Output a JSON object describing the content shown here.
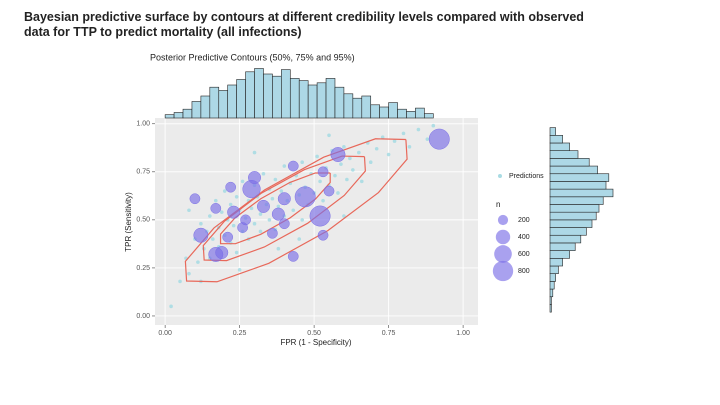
{
  "header": {
    "title": "Bayesian predictive surface by contours at different credibility levels compared with observed data for TTP to predict mortality (all infections)"
  },
  "chart_data": {
    "type": "scatter",
    "title": "Posterior Predictive Contours (50%, 75% and 95%)",
    "x_label": "FPR (1 - Specificity)",
    "y_label": "TPR (Sensitivity)",
    "xlim": [
      -0.034,
      1.05
    ],
    "ylim": [
      -0.047,
      1.03
    ],
    "xticks": [
      {
        "value": 0,
        "label": "0.00"
      },
      {
        "value": 0.25,
        "label": "0.25"
      },
      {
        "value": 0.5,
        "label": "0.50"
      },
      {
        "value": 0.75,
        "label": "0.75"
      },
      {
        "value": 1,
        "label": "1.00"
      }
    ],
    "yticks": [
      {
        "value": 0,
        "label": "0.00"
      },
      {
        "value": 0.25,
        "label": "0.25"
      },
      {
        "value": 0.5,
        "label": "0.50"
      },
      {
        "value": 0.75,
        "label": "0.75"
      },
      {
        "value": 1,
        "label": "1.00"
      }
    ],
    "grid": true,
    "series": [
      {
        "name": "Predictions",
        "color": "#a9dbe3",
        "x": [
          0.02,
          0.05,
          0.07,
          0.08,
          0.1,
          0.11,
          0.12,
          0.13,
          0.14,
          0.15,
          0.15,
          0.16,
          0.17,
          0.18,
          0.18,
          0.19,
          0.2,
          0.2,
          0.21,
          0.22,
          0.22,
          0.23,
          0.24,
          0.24,
          0.25,
          0.26,
          0.26,
          0.27,
          0.28,
          0.28,
          0.29,
          0.3,
          0.3,
          0.31,
          0.32,
          0.32,
          0.33,
          0.34,
          0.35,
          0.35,
          0.36,
          0.37,
          0.37,
          0.38,
          0.39,
          0.4,
          0.4,
          0.41,
          0.42,
          0.43,
          0.44,
          0.45,
          0.46,
          0.46,
          0.47,
          0.48,
          0.49,
          0.5,
          0.51,
          0.52,
          0.53,
          0.54,
          0.55,
          0.56,
          0.57,
          0.58,
          0.59,
          0.6,
          0.61,
          0.62,
          0.63,
          0.65,
          0.66,
          0.68,
          0.69,
          0.71,
          0.73,
          0.75,
          0.77,
          0.8,
          0.82,
          0.85,
          0.88,
          0.9,
          0.6,
          0.45,
          0.38,
          0.25,
          0.12,
          0.08,
          0.3,
          0.55
        ],
        "values": [
          0.05,
          0.18,
          0.3,
          0.22,
          0.4,
          0.28,
          0.48,
          0.35,
          0.44,
          0.52,
          0.3,
          0.4,
          0.6,
          0.46,
          0.36,
          0.54,
          0.42,
          0.65,
          0.5,
          0.38,
          0.58,
          0.47,
          0.62,
          0.33,
          0.55,
          0.44,
          0.7,
          0.51,
          0.6,
          0.4,
          0.56,
          0.48,
          0.68,
          0.62,
          0.53,
          0.44,
          0.74,
          0.58,
          0.66,
          0.5,
          0.61,
          0.45,
          0.71,
          0.57,
          0.65,
          0.52,
          0.78,
          0.6,
          0.69,
          0.55,
          0.73,
          0.63,
          0.5,
          0.8,
          0.67,
          0.58,
          0.74,
          0.64,
          0.83,
          0.7,
          0.6,
          0.77,
          0.68,
          0.86,
          0.73,
          0.64,
          0.79,
          0.88,
          0.71,
          0.82,
          0.76,
          0.85,
          0.7,
          0.9,
          0.8,
          0.87,
          0.93,
          0.84,
          0.91,
          0.95,
          0.88,
          0.97,
          0.92,
          0.99,
          0.52,
          0.4,
          0.35,
          0.24,
          0.18,
          0.55,
          0.85,
          0.94
        ]
      }
    ],
    "observed": {
      "color": "#7b6fe6",
      "x": [
        0.92,
        0.58,
        0.52,
        0.47,
        0.29,
        0.12,
        0.17,
        0.19,
        0.4,
        0.33,
        0.23,
        0.17,
        0.1,
        0.22,
        0.3,
        0.43,
        0.53,
        0.4,
        0.53,
        0.43,
        0.21,
        0.26,
        0.36,
        0.27,
        0.55,
        0.38
      ],
      "values": [
        0.92,
        0.84,
        0.52,
        0.62,
        0.66,
        0.42,
        0.32,
        0.33,
        0.61,
        0.57,
        0.54,
        0.56,
        0.61,
        0.67,
        0.72,
        0.78,
        0.75,
        0.48,
        0.42,
        0.31,
        0.41,
        0.46,
        0.43,
        0.5,
        0.65,
        0.53
      ],
      "sizes": [
        800,
        400,
        800,
        800,
        600,
        400,
        400,
        300,
        300,
        300,
        300,
        200,
        200,
        200,
        300,
        200,
        200,
        200,
        200,
        200,
        200,
        200,
        200,
        200,
        200,
        300
      ]
    },
    "size_legend": {
      "title": "n",
      "values": [
        200,
        400,
        600,
        800
      ]
    },
    "contours": {
      "color": "#e8685a",
      "lines": [
        {
          "x": [
            0.808,
            0.706,
            0.532,
            0.334,
            0.164,
            0.068,
            0.072,
            0.174,
            0.348,
            0.546,
            0.716,
            0.812,
            0.808
          ],
          "y": [
            0.918,
            0.922,
            0.826,
            0.656,
            0.458,
            0.284,
            0.182,
            0.178,
            0.274,
            0.444,
            0.642,
            0.816,
            0.918
          ]
        },
        {
          "x": [
            0.669,
            0.594,
            0.467,
            0.322,
            0.199,
            0.128,
            0.131,
            0.206,
            0.333,
            0.478,
            0.601,
            0.672,
            0.669
          ],
          "y": [
            0.829,
            0.832,
            0.761,
            0.638,
            0.493,
            0.366,
            0.291,
            0.288,
            0.359,
            0.482,
            0.627,
            0.754,
            0.829
          ]
        },
        {
          "x": [
            0.554,
            0.504,
            0.419,
            0.321,
            0.235,
            0.186,
            0.186,
            0.236,
            0.321,
            0.42,
            0.505,
            0.554,
            0.554
          ],
          "y": [
            0.744,
            0.744,
            0.695,
            0.61,
            0.511,
            0.426,
            0.376,
            0.376,
            0.425,
            0.511,
            0.609,
            0.694,
            0.744
          ]
        }
      ]
    },
    "x_histogram": {
      "color": "#add8e6",
      "bins": [
        0,
        0.03,
        0.06,
        0.09,
        0.12,
        0.15,
        0.18,
        0.21,
        0.24,
        0.27,
        0.3,
        0.33,
        0.36,
        0.39,
        0.42,
        0.45,
        0.48,
        0.51,
        0.54,
        0.57,
        0.6,
        0.63,
        0.66,
        0.69,
        0.72,
        0.75,
        0.78,
        0.81,
        0.84,
        0.87,
        0.9
      ],
      "counts": [
        3,
        5,
        8,
        15,
        20,
        28,
        25,
        30,
        35,
        42,
        45,
        40,
        38,
        44,
        36,
        34,
        30,
        32,
        36,
        28,
        22,
        18,
        20,
        12,
        10,
        14,
        8,
        6,
        9,
        4
      ]
    },
    "y_histogram": {
      "color": "#add8e6",
      "bins": [
        0.02,
        0.06,
        0.1,
        0.14,
        0.18,
        0.22,
        0.26,
        0.3,
        0.34,
        0.38,
        0.42,
        0.46,
        0.5,
        0.54,
        0.58,
        0.62,
        0.66,
        0.7,
        0.74,
        0.78,
        0.82,
        0.86,
        0.9,
        0.94,
        0.98
      ],
      "counts": [
        1,
        1,
        2,
        3,
        4,
        6,
        9,
        14,
        18,
        22,
        26,
        30,
        33,
        35,
        38,
        45,
        40,
        42,
        34,
        28,
        20,
        14,
        9,
        4
      ]
    }
  }
}
